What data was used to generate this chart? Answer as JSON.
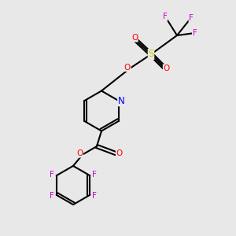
{
  "bg_color": "#e8e8e8",
  "bond_color": "#000000",
  "bond_lw": 1.5,
  "figsize": [
    3.0,
    3.0
  ],
  "dpi": 100,
  "colors": {
    "F": "#cc00cc",
    "N": "#0000ff",
    "O": "#ff0000",
    "S": "#cccc00",
    "C": "#000000"
  },
  "font_size": 7.5
}
